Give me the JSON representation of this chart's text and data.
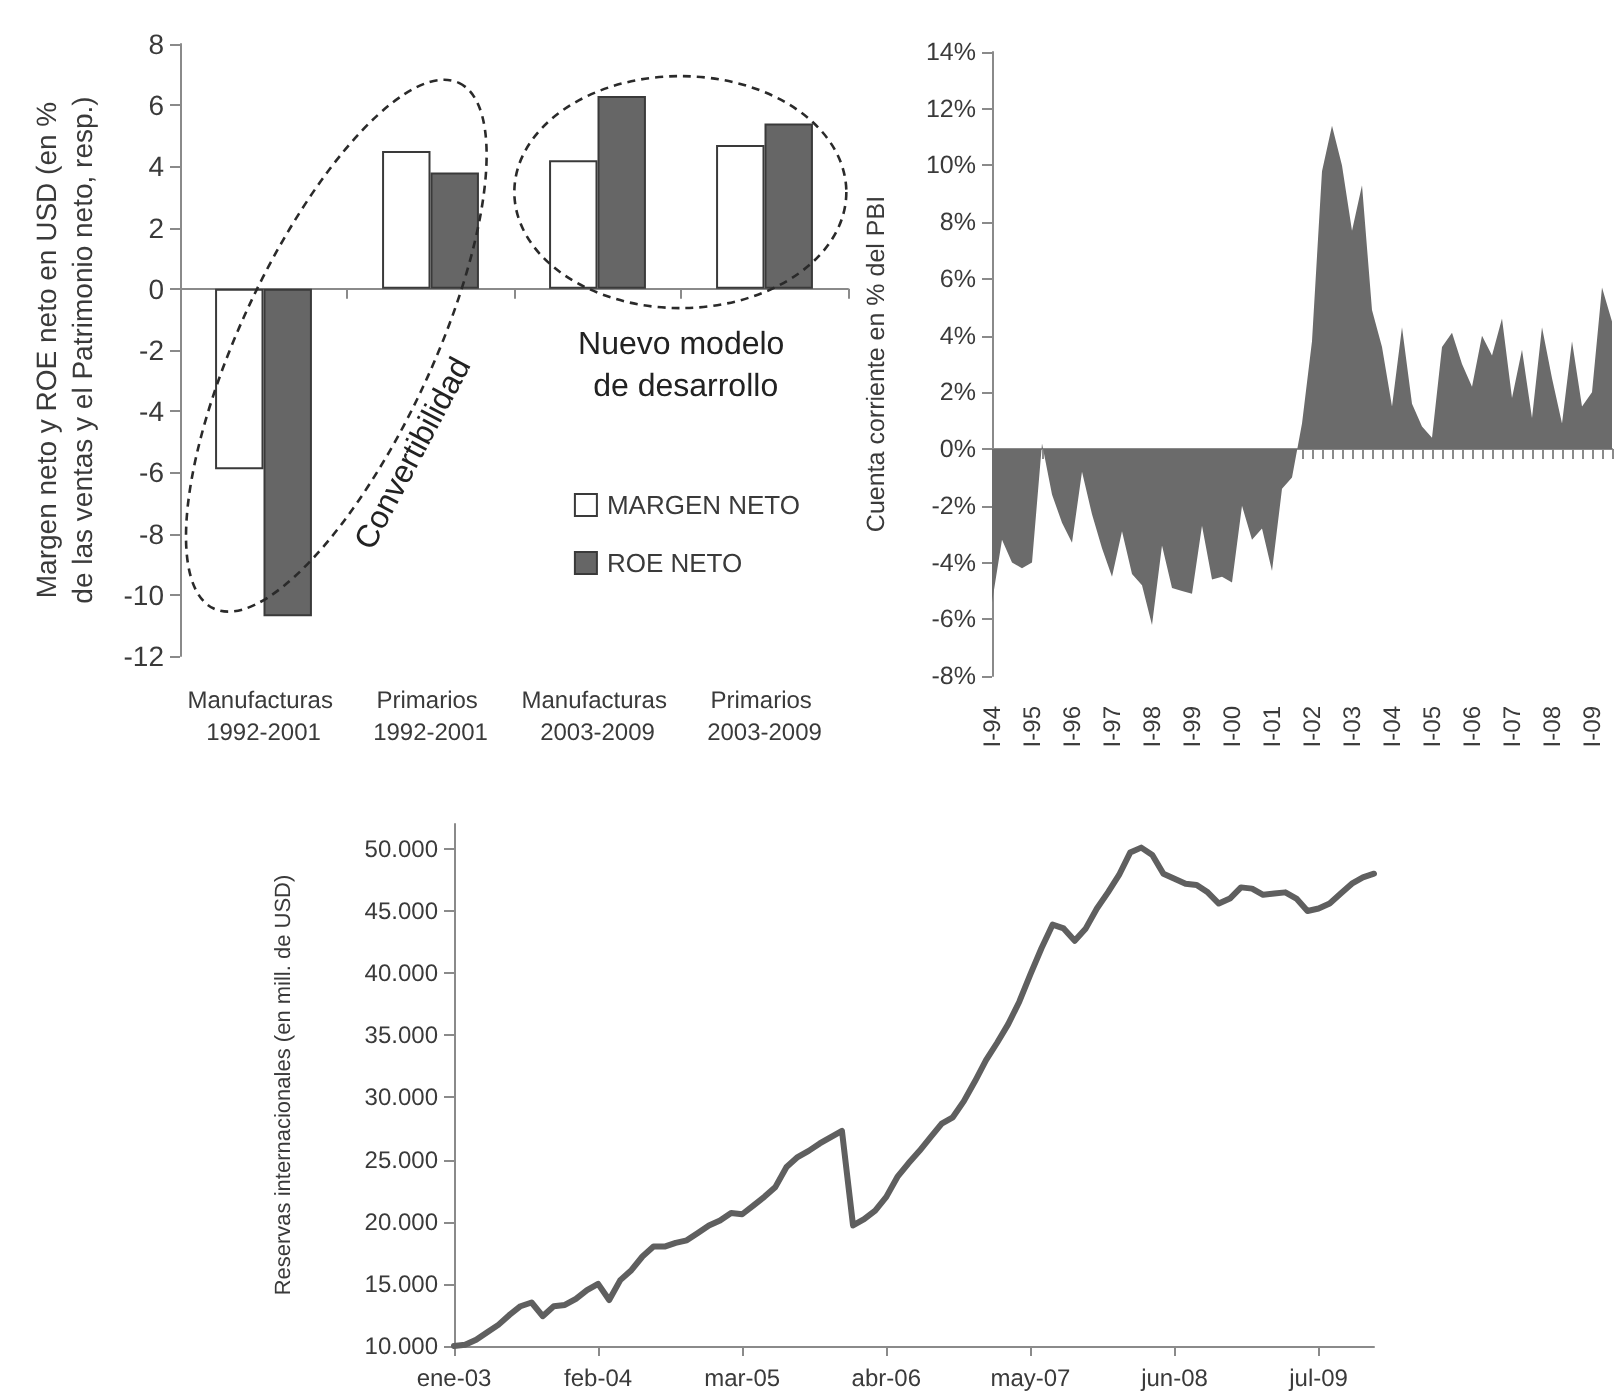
{
  "chart_data": [
    {
      "type": "bar",
      "ylabel": "Margen neto y ROE neto en USD (en % de las ventas y el Patrimonio neto, resp.)",
      "categories": [
        "Manufacturas 1992-2001",
        "Primarios 1992-2001",
        "Manufacturas 2003-2009",
        "Primarios 2003-2009"
      ],
      "series": [
        {
          "name": "MARGEN NETO",
          "color": "#ffffff",
          "values": [
            -5.9,
            4.5,
            4.2,
            4.7
          ]
        },
        {
          "name": "ROE NETO",
          "color": "#666666",
          "values": [
            -10.7,
            3.8,
            6.3,
            5.4
          ]
        }
      ],
      "ylim": [
        -12,
        8
      ],
      "yticks": [
        -12,
        -10,
        -8,
        -6,
        -4,
        -2,
        0,
        2,
        4,
        6,
        8
      ],
      "legend": "bottom right",
      "annotations": [
        "Convertibilidad",
        "Nuevo modelo de desarrollo"
      ]
    },
    {
      "type": "area",
      "ylabel": "Cuenta corriente en % del PBI",
      "categories": [
        "I-94",
        null,
        null,
        null,
        "I-95",
        null,
        null,
        null,
        "I-96",
        null,
        null,
        null,
        "I-97",
        null,
        null,
        null,
        "I-98",
        null,
        null,
        null,
        "I-99",
        null,
        null,
        null,
        "I-00",
        null,
        null,
        null,
        "I-01",
        null,
        null,
        null,
        "I-02",
        null,
        null,
        null,
        "I-03",
        null,
        null,
        null,
        "I-04",
        null,
        null,
        null,
        "I-05",
        null,
        null,
        null,
        "I-06",
        null,
        null,
        null,
        "I-07",
        null,
        null,
        null,
        "I-08",
        null,
        null,
        null,
        "I-09",
        null,
        null
      ],
      "values": [
        -5.4,
        -3.2,
        -4.0,
        -4.2,
        -4.0,
        0.2,
        -1.6,
        -2.6,
        -3.3,
        -0.8,
        -2.3,
        -3.5,
        -4.5,
        -2.9,
        -4.4,
        -4.8,
        -6.2,
        -3.4,
        -4.9,
        -5.0,
        -5.1,
        -2.7,
        -4.6,
        -4.5,
        -4.7,
        -2.0,
        -3.2,
        -2.8,
        -4.3,
        -1.4,
        -1.0,
        0.9,
        3.8,
        9.8,
        11.4,
        10.0,
        7.7,
        9.3,
        4.9,
        3.6,
        1.5,
        4.3,
        1.6,
        0.8,
        0.4,
        3.6,
        4.1,
        3.0,
        2.2,
        4.0,
        3.3,
        4.6,
        1.8,
        3.5,
        1.1,
        4.3,
        2.5,
        0.9,
        3.8,
        1.5,
        2.0,
        5.7,
        4.5
      ],
      "color": "#6b6b6b",
      "ylim": [
        -8,
        14
      ],
      "yticks": [
        {
          "value": -8,
          "label": "-8%"
        },
        {
          "value": -6,
          "label": "-6%"
        },
        {
          "value": -4,
          "label": "-4%"
        },
        {
          "value": -2,
          "label": "-2%"
        },
        {
          "value": 0,
          "label": "0%"
        },
        {
          "value": 2,
          "label": "2%"
        },
        {
          "value": 4,
          "label": "4%"
        },
        {
          "value": 6,
          "label": "6%"
        },
        {
          "value": 8,
          "label": "8%"
        },
        {
          "value": 10,
          "label": "10%"
        },
        {
          "value": 12,
          "label": "12%"
        },
        {
          "value": 14,
          "label": "14%"
        }
      ],
      "marker": "none"
    },
    {
      "type": "line",
      "ylabel": "Reservas internacionales (en mill. de USD)",
      "categories": [
        "ene-03",
        null,
        null,
        null,
        null,
        null,
        null,
        null,
        null,
        null,
        null,
        null,
        null,
        "feb-04",
        null,
        null,
        null,
        null,
        null,
        null,
        null,
        null,
        null,
        null,
        null,
        null,
        "mar-05",
        null,
        null,
        null,
        null,
        null,
        null,
        null,
        null,
        null,
        null,
        null,
        null,
        "abr-06",
        null,
        null,
        null,
        null,
        null,
        null,
        null,
        null,
        null,
        null,
        null,
        null,
        "may-07",
        null,
        null,
        null,
        null,
        null,
        null,
        null,
        null,
        null,
        null,
        null,
        null,
        "jun-08",
        null,
        null,
        null,
        null,
        null,
        null,
        null,
        null,
        null,
        null,
        null,
        null,
        "jul-09",
        null,
        null,
        null,
        null,
        null
      ],
      "values": [
        10000,
        10100,
        10500,
        11100,
        11700,
        12500,
        13200,
        13500,
        12400,
        13200,
        13300,
        13800,
        14500,
        15000,
        13700,
        15300,
        16100,
        17200,
        18000,
        18000,
        18300,
        18500,
        19100,
        19700,
        20100,
        20700,
        20600,
        21300,
        22000,
        22800,
        24400,
        25200,
        25700,
        26300,
        26800,
        27300,
        19700,
        20200,
        20900,
        22000,
        23600,
        24700,
        25700,
        26800,
        27900,
        28400,
        29700,
        31300,
        33000,
        34400,
        35900,
        37700,
        39900,
        42000,
        43900,
        43600,
        42600,
        43600,
        45200,
        46500,
        47900,
        49700,
        50100,
        49500,
        48000,
        47600,
        47200,
        47100,
        46500,
        45600,
        46000,
        46900,
        46800,
        46300,
        46400,
        46500,
        46000,
        45000,
        45200,
        45600,
        46400,
        47200,
        47700,
        48000
      ],
      "color": "#5f5f5f",
      "ylim": [
        10000,
        52000
      ],
      "yticks": [
        {
          "value": 10000,
          "label": "10.000"
        },
        {
          "value": 15000,
          "label": "15.000"
        },
        {
          "value": 20000,
          "label": "20.000"
        },
        {
          "value": 25000,
          "label": "25.000"
        },
        {
          "value": 30000,
          "label": "30.000"
        },
        {
          "value": 35000,
          "label": "35.000"
        },
        {
          "value": 40000,
          "label": "40.000"
        },
        {
          "value": 45000,
          "label": "45.000"
        },
        {
          "value": 50000,
          "label": "50.000"
        }
      ],
      "marker": "none"
    }
  ]
}
